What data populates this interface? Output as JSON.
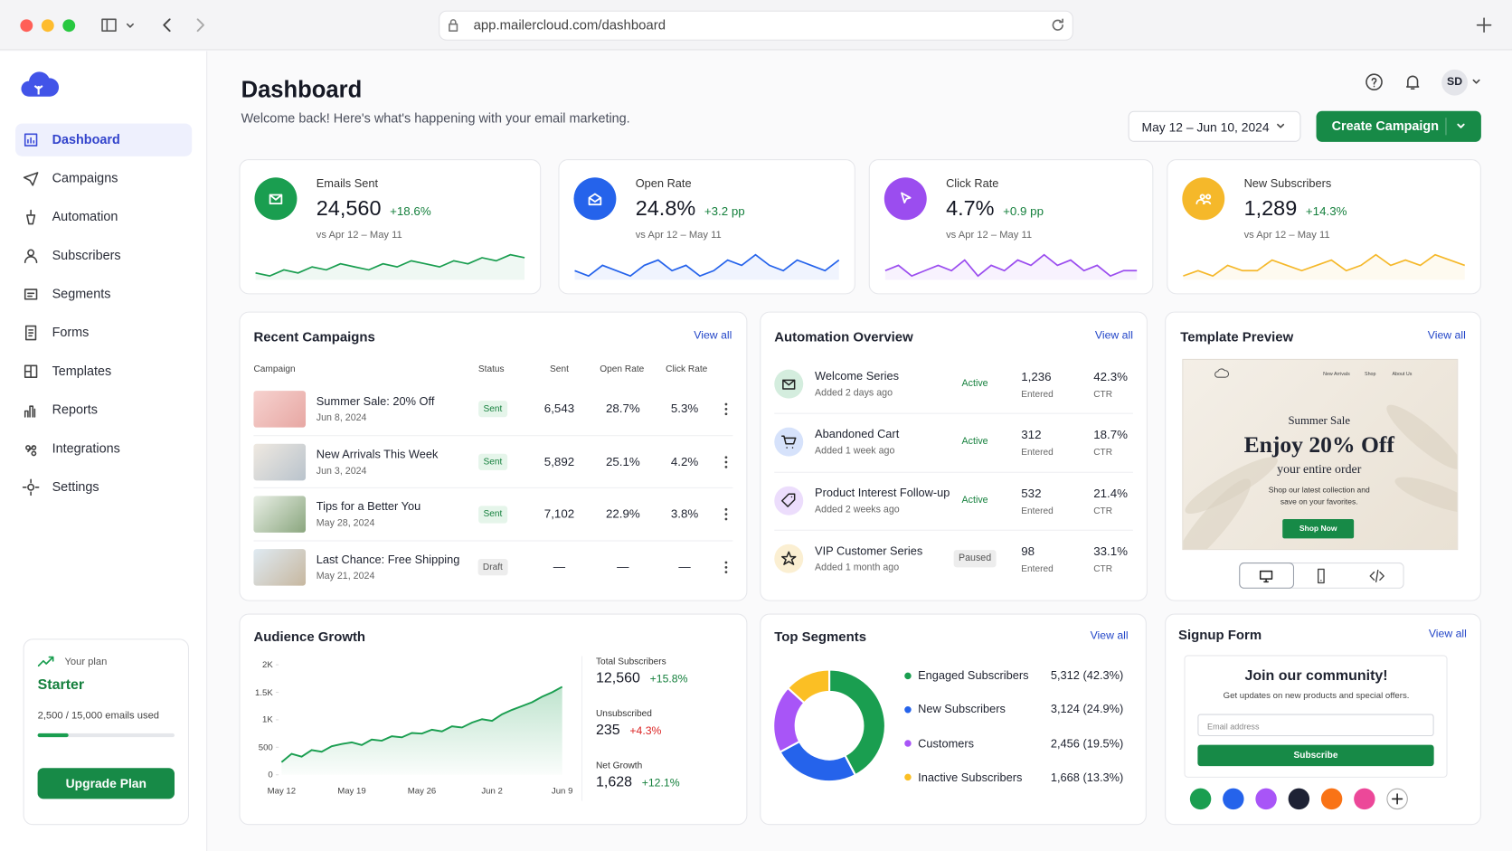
{
  "browser": {
    "url": "app.mailercloud.com/dashboard"
  },
  "sidebar": {
    "nav": [
      "Dashboard",
      "Campaigns",
      "Automation",
      "Subscribers",
      "Segments",
      "Forms",
      "Templates",
      "Reports",
      "Integrations",
      "Settings"
    ],
    "plan": {
      "label": "Your plan",
      "name": "Starter",
      "usage": "2,500 / 15,000 emails used",
      "button": "Upgrade Plan"
    }
  },
  "header": {
    "title": "Dashboard",
    "subtitle": "Welcome back! Here's what's happening with your email marketing.",
    "user": "SD",
    "date_range": "May 12 – Jun 10, 2024",
    "cta": "Create Campaign"
  },
  "kpis": [
    {
      "label": "Emails Sent",
      "value": "24,560",
      "change": "+18.6%",
      "compare": "vs Apr 12 – May 11",
      "color": "#1a9e50",
      "trend": [
        3,
        2,
        4,
        3,
        5,
        4,
        6,
        5,
        4,
        6,
        5,
        7,
        6,
        5,
        7,
        6,
        8,
        7,
        9,
        8
      ]
    },
    {
      "label": "Open Rate",
      "value": "24.8%",
      "change": "+3.2 pp",
      "compare": "vs Apr 12 – May 11",
      "color": "#2563eb",
      "trend": [
        4,
        3,
        5,
        4,
        3,
        5,
        6,
        4,
        5,
        3,
        4,
        6,
        5,
        7,
        5,
        4,
        6,
        5,
        4,
        6
      ]
    },
    {
      "label": "Click Rate",
      "value": "4.7%",
      "change": "+0.9 pp",
      "compare": "vs Apr 12 – May 11",
      "color": "#9b4def",
      "trend": [
        4,
        5,
        3,
        4,
        5,
        4,
        6,
        3,
        5,
        4,
        6,
        5,
        7,
        5,
        6,
        4,
        5,
        3,
        4,
        4
      ]
    },
    {
      "label": "New Subscribers",
      "value": "1,289",
      "change": "+14.3%",
      "compare": "vs Apr 12 – May 11",
      "color": "#f5b82a",
      "trend": [
        3,
        4,
        3,
        5,
        4,
        4,
        6,
        5,
        4,
        5,
        6,
        4,
        5,
        7,
        5,
        6,
        5,
        7,
        6,
        5
      ]
    }
  ],
  "recent_campaigns": {
    "title": "Recent Campaigns",
    "view_all": "View all",
    "columns": [
      "Campaign",
      "Status",
      "Sent",
      "Open Rate",
      "Click Rate"
    ],
    "rows": [
      {
        "name": "Summer Sale: 20% Off",
        "date": "Jun 8, 2024",
        "status": "Sent",
        "status_color": "#15803d",
        "status_bg": "#e5f5ea",
        "sent": "6,543",
        "open": "28.7%",
        "click": "5.3%"
      },
      {
        "name": "New Arrivals This Week",
        "date": "Jun 3, 2024",
        "status": "Sent",
        "status_color": "#15803d",
        "status_bg": "#e5f5ea",
        "sent": "5,892",
        "open": "25.1%",
        "click": "4.2%"
      },
      {
        "name": "Tips for a Better You",
        "date": "May 28, 2024",
        "status": "Sent",
        "status_color": "#15803d",
        "status_bg": "#e5f5ea",
        "sent": "7,102",
        "open": "22.9%",
        "click": "3.8%"
      },
      {
        "name": "Last Chance: Free Shipping",
        "date": "May 21, 2024",
        "status": "Draft",
        "status_color": "#555555",
        "status_bg": "#ededed",
        "sent": "—",
        "open": "—",
        "click": "—"
      }
    ]
  },
  "automation": {
    "title": "Automation Overview",
    "view_all": "View all",
    "rows": [
      {
        "name": "Welcome Series",
        "added": "Added 2 days ago",
        "status": "Active",
        "status_color": "#15803d",
        "status_bg": "#ffffff",
        "entered": "1,236",
        "entered_label": "Entered",
        "ctr": "42.3%",
        "ctr_label": "CTR",
        "color": "#1a9e50"
      },
      {
        "name": "Abandoned Cart",
        "added": "Added 1 week ago",
        "status": "Active",
        "status_color": "#15803d",
        "status_bg": "#ffffff",
        "entered": "312",
        "entered_label": "Entered",
        "ctr": "18.7%",
        "ctr_label": "CTR",
        "color": "#2563eb"
      },
      {
        "name": "Product Interest Follow-up",
        "added": "Added 2 weeks ago",
        "status": "Active",
        "status_color": "#15803d",
        "status_bg": "#ffffff",
        "entered": "532",
        "entered_label": "Entered",
        "ctr": "21.4%",
        "ctr_label": "CTR",
        "color": "#9b4def"
      },
      {
        "name": "VIP Customer Series",
        "added": "Added 1 month ago",
        "status": "Paused",
        "status_color": "#555555",
        "status_bg": "#ededed",
        "entered": "98",
        "entered_label": "Entered",
        "ctr": "33.1%",
        "ctr_label": "CTR",
        "color": "#e8a911"
      }
    ]
  },
  "template_preview": {
    "title": "Template Preview",
    "view_all": "View all",
    "nav": [
      "New Arrivals",
      "Shop",
      "About Us"
    ],
    "kicker": "Summer Sale",
    "headline": "Enjoy 20% Off",
    "sub": "your entire order",
    "body": "Shop our latest collection and save on your favorites.",
    "button": "Shop Now"
  },
  "audience_growth": {
    "title": "Audience Growth",
    "chart": {
      "type": "line",
      "color": "#1a9e50",
      "categories": [
        "May 12",
        null,
        null,
        null,
        null,
        null,
        null,
        "May 19",
        null,
        null,
        null,
        null,
        null,
        null,
        "May 26",
        null,
        null,
        null,
        null,
        null,
        null,
        "Jun 2",
        null,
        null,
        null,
        null,
        null,
        null,
        "Jun 9"
      ],
      "values": [
        230,
        380,
        330,
        450,
        420,
        520,
        560,
        590,
        540,
        640,
        620,
        700,
        680,
        760,
        750,
        820,
        790,
        880,
        860,
        950,
        1010,
        980,
        1100,
        1180,
        1250,
        1320,
        1420,
        1500,
        1600
      ],
      "ylim": [
        0,
        2000
      ],
      "yticks": [
        0,
        500,
        {
          "value": 1000,
          "label": "1K"
        },
        {
          "value": 1500,
          "label": "1.5K"
        },
        {
          "value": 2000,
          "label": "2K"
        }
      ]
    },
    "stats": [
      {
        "label": "Total Subscribers",
        "value": "12,560",
        "change": "+15.8%",
        "color": "#15803d"
      },
      {
        "label": "Unsubscribed",
        "value": "235",
        "change": "+4.3%",
        "color": "#dc2626"
      },
      {
        "label": "Net Growth",
        "value": "1,628",
        "change": "+12.1%",
        "color": "#15803d"
      }
    ]
  },
  "top_segments": {
    "title": "Top Segments",
    "view_all": "View all",
    "chart": {
      "type": "pie",
      "categories": [
        "Engaged Subscribers",
        "New Subscribers",
        "Customers",
        "Inactive Subscribers"
      ],
      "values": [
        5312,
        3124,
        2456,
        1668
      ],
      "value_labels": [
        "5,312 (42.3%)",
        "3,124 (24.9%)",
        "2,456 (19.5%)",
        "1,668 (13.3%)"
      ],
      "colors": [
        "#1a9e50",
        "#2563eb",
        "#a855f7",
        "#fbbf24"
      ]
    }
  },
  "signup_form": {
    "title": "Signup Form",
    "view_all": "View all",
    "heading": "Join our community!",
    "text": "Get updates on new products and special offers.",
    "placeholder": "Email address",
    "button": "Subscribe",
    "swatches": [
      "#1a9e50",
      "#2563eb",
      "#a855f7",
      "#1e2235",
      "#f97316",
      "#ec4899"
    ]
  }
}
